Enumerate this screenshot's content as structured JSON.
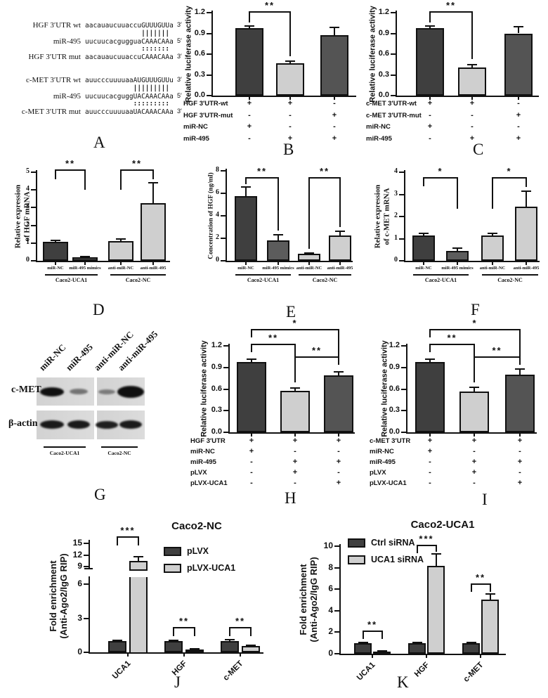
{
  "colors": {
    "dark": "#3f3f3f",
    "dark2": "#545454",
    "medium": "#5c5c5c",
    "light": "#cfcfcf",
    "axis": "#111111",
    "blot_bg": "#d6d6d6",
    "band": "#101010"
  },
  "panelA": {
    "letter": "A",
    "blocks": [
      {
        "wt_label": "HGF 3′UTR wt",
        "wt_seq": "aacauaucuuaccuGUUUGUUa",
        "wt_end": "3′",
        "match": "              |||||||",
        "mir_label": "miR-495",
        "mir_seq": "uucuucacgugguaCAAACAAa",
        "mir_end": "5′",
        "dots": "              :::::::",
        "mut_label": "HGF 3′UTR mut",
        "mut_seq": "aacauaucuuaccuCAAACAAa",
        "mut_end": "3′"
      },
      {
        "wt_label": "c-MET 3′UTR wt",
        "wt_seq": "auucccuuuuaaAUGUUUGUUu",
        "wt_end": "3′",
        "match": "            |||||||||",
        "mir_label": "miR-495",
        "mir_seq": "uucuucacguggUACAAACAAa",
        "mir_end": "5′",
        "dots": "            :::::::::",
        "mut_label": "c-MET 3′UTR mut",
        "mut_seq": "auucccuuuuaaUACAAACAAa",
        "mut_end": "3′"
      }
    ]
  },
  "panelB": {
    "letter": "B",
    "ylabel_lines": [
      "Relative luciferase activity"
    ],
    "yticks": [
      "0.0",
      "0.3",
      "0.6",
      "0.9",
      "1.2"
    ],
    "bars": [
      {
        "value": 0.98,
        "error": 0.03,
        "color": "dark"
      },
      {
        "value": 0.47,
        "error": 0.03,
        "color": "light"
      },
      {
        "value": 0.87,
        "error": 0.12,
        "color": "dark2"
      }
    ],
    "sig": [
      "**"
    ],
    "conditions": [
      {
        "label": "HGF 3′UTR-wt",
        "vals": [
          "+",
          "+",
          "-"
        ]
      },
      {
        "label": "HGF 3′UTR-mut",
        "vals": [
          "-",
          "-",
          "+"
        ]
      },
      {
        "label": "miR-NC",
        "vals": [
          "+",
          "-",
          "-"
        ]
      },
      {
        "label": "miR-495",
        "vals": [
          "-",
          "+",
          "+"
        ]
      }
    ]
  },
  "panelC": {
    "letter": "C",
    "ylabel_lines": [
      "Relative luciferase activity"
    ],
    "yticks": [
      "0.0",
      "0.3",
      "0.6",
      "0.9",
      "1.2"
    ],
    "bars": [
      {
        "value": 0.98,
        "error": 0.03,
        "color": "dark"
      },
      {
        "value": 0.41,
        "error": 0.04,
        "color": "light"
      },
      {
        "value": 0.9,
        "error": 0.1,
        "color": "dark2"
      }
    ],
    "sig": [
      "**"
    ],
    "conditions": [
      {
        "label": "c-MET 3′UTR-wt",
        "vals": [
          "+",
          "+",
          "-"
        ]
      },
      {
        "label": "c-MET 3′UTR-mut",
        "vals": [
          "-",
          "-",
          "+"
        ]
      },
      {
        "label": "miR-NC",
        "vals": [
          "+",
          "-",
          "-"
        ]
      },
      {
        "label": "miR-495",
        "vals": [
          "-",
          "+",
          "+"
        ]
      }
    ]
  },
  "panelD": {
    "letter": "D",
    "ylabel_lines": [
      "Relative expression",
      "of HGF mRNA"
    ],
    "yticks": [
      "0",
      "1",
      "2",
      "3",
      "4",
      "5"
    ],
    "bars": [
      {
        "value": 1.08,
        "error": 0.06,
        "color": "dark"
      },
      {
        "value": 0.2,
        "error": 0.05,
        "color": "medium"
      },
      {
        "value": 1.13,
        "error": 0.1,
        "color": "light"
      },
      {
        "value": 3.25,
        "error": 1.15,
        "color": "light"
      }
    ],
    "sig": [
      "**",
      "**"
    ],
    "categories": [
      "miR-NC",
      "miR-495 mimics",
      "anti-miR-NC",
      "anti-miR-495"
    ],
    "groups": [
      "Caco2-UCA1",
      "Caco2-NC"
    ]
  },
  "panelE": {
    "letter": "E",
    "ylabel_lines": [
      "Concentration of HGF (ng/ml)"
    ],
    "yticks": [
      "0",
      "2",
      "4",
      "6",
      "8"
    ],
    "bars": [
      {
        "value": 5.75,
        "error": 0.8,
        "color": "dark"
      },
      {
        "value": 1.8,
        "error": 0.5,
        "color": "medium"
      },
      {
        "value": 0.6,
        "error": 0.08,
        "color": "light"
      },
      {
        "value": 2.25,
        "error": 0.35,
        "color": "light"
      }
    ],
    "sig": [
      "**",
      "**"
    ],
    "categories": [
      "miR-NC",
      "miR-495 mimics",
      "anti-miR-NC",
      "anti-miR-495"
    ],
    "groups": [
      "Caco2-UCA1",
      "Caco2-NC"
    ]
  },
  "panelF": {
    "letter": "F",
    "ylabel_lines": [
      "Relative expression",
      "of c-MET mRNA"
    ],
    "yticks": [
      "0",
      "1",
      "2",
      "3",
      "4"
    ],
    "bars": [
      {
        "value": 1.13,
        "error": 0.1,
        "color": "dark"
      },
      {
        "value": 0.45,
        "error": 0.13,
        "color": "medium"
      },
      {
        "value": 1.13,
        "error": 0.1,
        "color": "light"
      },
      {
        "value": 2.45,
        "error": 0.7,
        "color": "light"
      }
    ],
    "sig": [
      "*",
      "*"
    ],
    "categories": [
      "miR-NC",
      "miR-495 mimics",
      "anti-miR-NC",
      "anti-miR-495"
    ],
    "groups": [
      "Caco2-UCA1",
      "Caco2-NC"
    ]
  },
  "panelG": {
    "letter": "G",
    "lanes": [
      "miR-NC",
      "miR-495",
      "anti-miR-NC",
      "anti-miR-495"
    ],
    "rows": [
      "c-MET",
      "β-actin"
    ],
    "groups": [
      "Caco2-UCA1",
      "Caco2-NC"
    ],
    "bands": {
      "c_met": [
        1,
        0.5,
        0.45,
        1
      ],
      "b_actin": [
        0.95,
        0.95,
        0.92,
        0.95
      ]
    }
  },
  "panelH": {
    "letter": "H",
    "ylabel_lines": [
      "Relative luciferase activity"
    ],
    "yticks": [
      "0.0",
      "0.3",
      "0.6",
      "0.9",
      "1.2"
    ],
    "bars": [
      {
        "value": 0.98,
        "error": 0.03,
        "color": "dark"
      },
      {
        "value": 0.58,
        "error": 0.03,
        "color": "light"
      },
      {
        "value": 0.79,
        "error": 0.05,
        "color": "dark2"
      }
    ],
    "sig": [
      "*",
      "**",
      "**"
    ],
    "conditions": [
      {
        "label": "HGF 3′UTR",
        "vals": [
          "+",
          "+",
          "+"
        ]
      },
      {
        "label": "miR-NC",
        "vals": [
          "+",
          "-",
          "-"
        ]
      },
      {
        "label": "miR-495",
        "vals": [
          "-",
          "+",
          "+"
        ]
      },
      {
        "label": "pLVX",
        "vals": [
          "-",
          "+",
          "-"
        ]
      },
      {
        "label": "pLVX-UCA1",
        "vals": [
          "-",
          "-",
          "+"
        ]
      }
    ]
  },
  "panelI": {
    "letter": "I",
    "ylabel_lines": [
      "Relative luciferase activity"
    ],
    "yticks": [
      "0.0",
      "0.3",
      "0.6",
      "0.9",
      "1.2"
    ],
    "bars": [
      {
        "value": 0.98,
        "error": 0.03,
        "color": "dark"
      },
      {
        "value": 0.57,
        "error": 0.05,
        "color": "light"
      },
      {
        "value": 0.8,
        "error": 0.08,
        "color": "dark2"
      }
    ],
    "sig": [
      "*",
      "**",
      "**"
    ],
    "conditions": [
      {
        "label": "c-MET 3′UTR",
        "vals": [
          "+",
          "+",
          "+"
        ]
      },
      {
        "label": "miR-NC",
        "vals": [
          "+",
          "-",
          "-"
        ]
      },
      {
        "label": "miR-495",
        "vals": [
          "-",
          "+",
          "+"
        ]
      },
      {
        "label": "pLVX",
        "vals": [
          "-",
          "+",
          "-"
        ]
      },
      {
        "label": "pLVX-UCA1",
        "vals": [
          "-",
          "-",
          "+"
        ]
      }
    ]
  },
  "panelJ": {
    "letter": "J",
    "title": "Caco2-NC",
    "ylabel_lines": [
      "Fold enrichment",
      "(Anti-Ago2/IgG RIP)"
    ],
    "yticks_lower": [
      "0",
      "3",
      "6"
    ],
    "yticks_upper": [
      "9",
      "12",
      "15"
    ],
    "legend": [
      {
        "label": "pLVX",
        "color": "dark"
      },
      {
        "label": "pLVX-UCA1",
        "color": "light"
      }
    ],
    "categories": [
      "UCA1",
      "HGF",
      "c-MET"
    ],
    "series": [
      {
        "name": "pLVX",
        "color": "dark",
        "values": [
          1.0,
          1.0,
          1.0
        ],
        "errors": [
          0.06,
          0.08,
          0.09
        ]
      },
      {
        "name": "pLVX-UCA1",
        "color": "light",
        "values": [
          10.5,
          0.25,
          0.55
        ],
        "errors": [
          1.0,
          0.06,
          0.06
        ]
      }
    ],
    "sig": [
      "***",
      "**",
      "**"
    ]
  },
  "panelK": {
    "letter": "K",
    "title": "Caco2-UCA1",
    "ylabel_lines": [
      "Fold enrichment",
      "(Anti-Ago2/IgG RIP)"
    ],
    "yticks": [
      "0",
      "2",
      "4",
      "6",
      "8",
      "10"
    ],
    "legend": [
      {
        "label": "Ctrl siRNA",
        "color": "dark"
      },
      {
        "label": "UCA1 siRNA",
        "color": "light"
      }
    ],
    "categories": [
      "UCA1",
      "HGF",
      "c-MET"
    ],
    "series": [
      {
        "name": "Ctrl siRNA",
        "color": "dark",
        "values": [
          1.0,
          1.0,
          1.0
        ],
        "errors": [
          0.06,
          0.06,
          0.06
        ]
      },
      {
        "name": "UCA1 siRNA",
        "color": "light",
        "values": [
          0.22,
          8.2,
          5.05
        ],
        "errors": [
          0.06,
          1.05,
          0.5
        ]
      }
    ],
    "sig": [
      "**",
      "***",
      "**"
    ]
  }
}
